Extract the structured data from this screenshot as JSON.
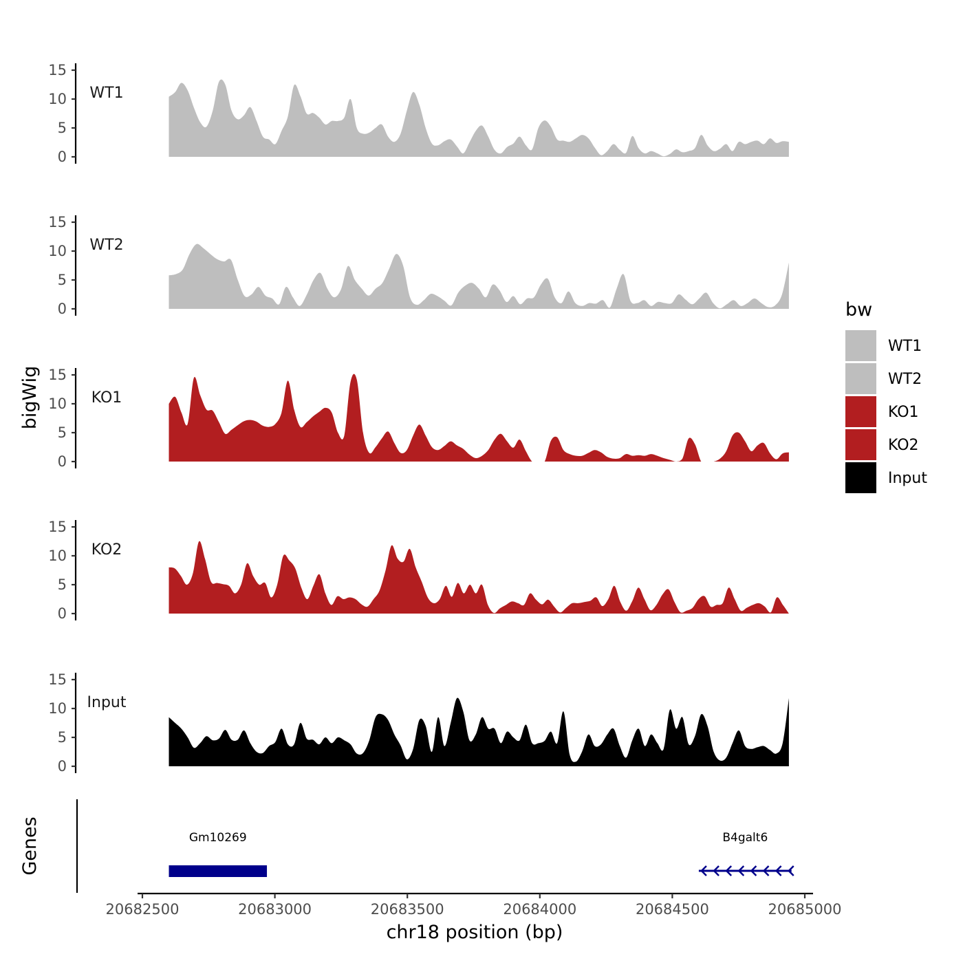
{
  "chart_data": {
    "type": "area",
    "title": "",
    "ylabel": "bigWig",
    "xlabel": "chr18 position (bp)",
    "xlim": [
      20682500,
      20685000
    ],
    "ylim": [
      0,
      15
    ],
    "yticks": [
      0,
      5,
      10,
      15
    ],
    "xticks": [
      20682500,
      20683000,
      20683500,
      20684000,
      20684500,
      20685000
    ],
    "x_start": 20682600,
    "x_end": 20684940,
    "legend": {
      "title": "bw",
      "position": "right",
      "entries": [
        {
          "label": "WT1",
          "color": "#bebebe"
        },
        {
          "label": "WT2",
          "color": "#bebebe"
        },
        {
          "label": "KO1",
          "color": "#b21e20"
        },
        {
          "label": "KO2",
          "color": "#b21e20"
        },
        {
          "label": "Input",
          "color": "#000000"
        }
      ]
    },
    "series": [
      {
        "name": "WT1",
        "color": "#bebebe",
        "values": [
          10.4,
          11.2,
          12.8,
          11.5,
          8.5,
          6.0,
          5.2,
          8.0,
          13.0,
          12.5,
          8.0,
          6.5,
          7.2,
          8.6,
          6.2,
          3.5,
          3.0,
          2.2,
          4.5,
          7.0,
          12.4,
          10.5,
          7.5,
          7.6,
          6.8,
          5.6,
          6.2,
          6.2,
          6.8,
          10.0,
          5.0,
          4.0,
          4.2,
          5.0,
          5.6,
          3.5,
          2.6,
          4.0,
          8.0,
          11.2,
          9.0,
          5.0,
          2.3,
          2.0,
          2.7,
          3.0,
          1.8,
          0.6,
          2.5,
          4.5,
          5.4,
          3.5,
          1.2,
          0.6,
          1.7,
          2.3,
          3.5,
          2.0,
          1.3,
          5.0,
          6.3,
          5.2,
          3.0,
          2.8,
          2.6,
          3.2,
          3.8,
          3.2,
          1.6,
          0.3,
          1.0,
          2.2,
          1.2,
          0.7,
          3.6,
          1.5,
          0.6,
          1.0,
          0.6,
          0.1,
          0.5,
          1.3,
          0.8,
          1.0,
          1.5,
          3.8,
          2.0,
          1.0,
          1.4,
          2.2,
          1.0,
          2.6,
          2.2,
          2.6,
          2.8,
          2.2,
          3.2,
          2.4,
          2.7,
          2.6
        ]
      },
      {
        "name": "WT2",
        "color": "#bebebe",
        "values": [
          5.8,
          6.0,
          6.8,
          9.5,
          11.2,
          10.5,
          9.5,
          8.6,
          8.2,
          8.5,
          5.0,
          2.2,
          2.5,
          3.8,
          2.3,
          1.8,
          0.8,
          3.8,
          2.0,
          0.5,
          2.4,
          5.0,
          6.2,
          3.5,
          2.0,
          3.4,
          7.4,
          5.0,
          3.5,
          2.3,
          3.5,
          4.5,
          7.0,
          9.5,
          7.5,
          2.0,
          0.7,
          1.5,
          2.6,
          2.2,
          1.4,
          0.6,
          2.8,
          4.0,
          4.5,
          3.5,
          2.0,
          4.2,
          3.2,
          1.2,
          2.2,
          0.8,
          1.8,
          2.0,
          4.2,
          5.2,
          2.0,
          1.0,
          3.0,
          1.0,
          0.5,
          1.0,
          0.9,
          1.5,
          0.2,
          3.5,
          6.0,
          1.4,
          1.0,
          1.5,
          0.5,
          1.2,
          1.0,
          1.0,
          2.5,
          1.6,
          0.8,
          1.8,
          2.8,
          1.0,
          0.1,
          0.8,
          1.5,
          0.5,
          1.0,
          1.8,
          1.0,
          0.3,
          0.6,
          2.5,
          8.0
        ]
      },
      {
        "name": "KO1",
        "color": "#b21e20",
        "values": [
          10.0,
          11.2,
          8.5,
          6.5,
          14.5,
          11.5,
          9.0,
          8.8,
          6.8,
          4.8,
          5.5,
          6.3,
          7.0,
          7.2,
          6.9,
          6.2,
          6.0,
          6.5,
          8.5,
          14.0,
          9.0,
          6.0,
          6.8,
          7.8,
          8.6,
          9.3,
          8.5,
          5.0,
          4.5,
          13.8,
          14.2,
          5.0,
          1.5,
          2.5,
          4.0,
          5.2,
          3.2,
          1.5,
          2.0,
          4.5,
          6.4,
          4.5,
          2.5,
          2.0,
          2.7,
          3.5,
          2.8,
          2.2,
          1.2,
          0.6,
          1.0,
          2.0,
          3.8,
          4.8,
          3.5,
          2.4,
          3.8,
          1.8,
          0.0,
          0.0,
          0.0,
          3.6,
          4.2,
          2.0,
          1.3,
          1.0,
          1.0,
          1.5,
          2.0,
          1.6,
          0.8,
          0.5,
          0.6,
          1.3,
          1.0,
          1.1,
          1.0,
          1.3,
          1.0,
          0.6,
          0.3,
          0.0,
          0.5,
          4.0,
          3.0,
          0.0,
          0.0,
          0.0,
          0.5,
          1.8,
          4.5,
          5.0,
          3.5,
          1.8,
          2.8,
          3.2,
          1.4,
          0.4,
          1.4,
          1.6
        ]
      },
      {
        "name": "KO2",
        "color": "#b21e20",
        "values": [
          8.0,
          7.8,
          6.5,
          5.0,
          7.0,
          12.5,
          9.5,
          5.5,
          5.3,
          5.1,
          4.8,
          3.5,
          5.0,
          8.7,
          6.5,
          5.0,
          5.3,
          2.8,
          5.0,
          10.0,
          9.2,
          7.8,
          4.5,
          2.5,
          4.8,
          6.8,
          3.5,
          1.5,
          3.0,
          2.5,
          2.8,
          2.5,
          1.6,
          1.2,
          2.5,
          4.0,
          7.5,
          11.8,
          9.5,
          9.0,
          11.2,
          8.0,
          5.5,
          2.8,
          1.8,
          2.5,
          4.8,
          2.9,
          5.3,
          3.5,
          5.0,
          3.5,
          5.0,
          1.5,
          0.1,
          0.9,
          1.5,
          2.1,
          1.8,
          1.5,
          3.5,
          2.4,
          1.6,
          2.4,
          1.2,
          0.2,
          1.0,
          1.8,
          1.8,
          2.0,
          2.2,
          2.8,
          1.3,
          2.5,
          4.8,
          2.0,
          0.5,
          2.2,
          4.5,
          2.5,
          0.6,
          1.5,
          3.3,
          4.2,
          2.0,
          0.2,
          0.5,
          1.0,
          2.5,
          3.0,
          1.2,
          1.5,
          1.8,
          4.5,
          2.5,
          0.5,
          1.0,
          1.5,
          1.8,
          1.2,
          0.2,
          2.8,
          1.5,
          0.0
        ]
      },
      {
        "name": "Input",
        "color": "#000000",
        "values": [
          8.5,
          7.5,
          6.5,
          5.0,
          3.2,
          4.0,
          5.2,
          4.5,
          4.8,
          6.3,
          4.6,
          4.6,
          6.2,
          4.0,
          2.5,
          2.3,
          3.5,
          4.2,
          6.5,
          3.8,
          3.8,
          7.5,
          4.8,
          4.6,
          3.8,
          5.0,
          4.0,
          5.0,
          4.5,
          3.8,
          2.2,
          2.3,
          4.5,
          8.5,
          9.0,
          8.0,
          5.5,
          3.6,
          1.2,
          3.0,
          8.0,
          7.0,
          2.5,
          8.5,
          3.5,
          7.5,
          11.8,
          9.5,
          4.5,
          5.5,
          8.5,
          6.5,
          6.5,
          4.0,
          6.0,
          5.0,
          4.5,
          7.2,
          4.0,
          4.0,
          4.4,
          6.0,
          4.0,
          9.5,
          2.0,
          0.8,
          2.6,
          5.5,
          3.5,
          3.8,
          5.5,
          6.5,
          3.5,
          1.5,
          4.5,
          6.5,
          3.5,
          5.5,
          4.0,
          3.0,
          9.8,
          6.5,
          8.5,
          3.8,
          5.2,
          9.0,
          7.0,
          2.5,
          1.0,
          1.5,
          4.0,
          6.2,
          3.5,
          3.0,
          3.3,
          3.5,
          2.8,
          2.2,
          4.0,
          11.8
        ]
      }
    ],
    "genes": [
      {
        "name": "Gm10269",
        "start": 20682600,
        "end": 20682970,
        "strand": "+",
        "color": "#00008b"
      },
      {
        "name": "B4galt6",
        "start": 20684600,
        "end": 20684950,
        "strand": "-",
        "color": "#00008b"
      }
    ],
    "gene_track_label": "Genes"
  }
}
